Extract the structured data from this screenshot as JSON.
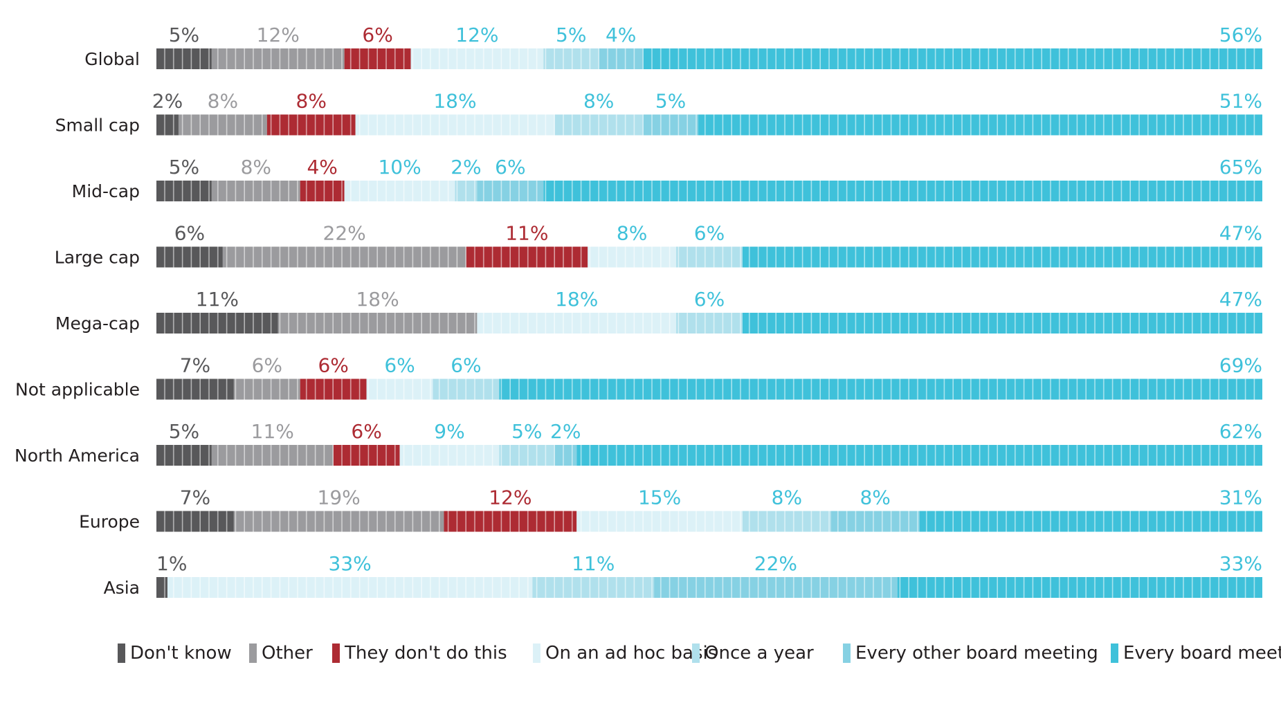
{
  "chart_data": {
    "type": "bar",
    "orientation": "horizontal",
    "stacked": true,
    "normalized": true,
    "unit": "%",
    "categories": [
      "Global",
      "Small cap",
      "Mid-cap",
      "Large cap",
      "Mega-cap",
      "Not applicable",
      "North America",
      "Europe",
      "Asia"
    ],
    "series": [
      {
        "name": "Don't know",
        "color": "#58585a",
        "label_color": "#58585a",
        "values": [
          5,
          2,
          5,
          6,
          11,
          7,
          5,
          7,
          1
        ]
      },
      {
        "name": "Other",
        "color": "#9b9b9e",
        "label_color": "#9b9b9e",
        "values": [
          12,
          8,
          8,
          22,
          18,
          6,
          11,
          19,
          0
        ]
      },
      {
        "name": "They don't do this",
        "color": "#ad2b33",
        "label_color": "#ad2b33",
        "values": [
          6,
          8,
          4,
          11,
          0,
          6,
          6,
          12,
          0
        ]
      },
      {
        "name": "On an ad hoc basis",
        "color": "#dcf1f7",
        "label_color": "#3fc1da",
        "values": [
          12,
          18,
          10,
          8,
          18,
          6,
          9,
          15,
          33
        ]
      },
      {
        "name": "Once a year",
        "color": "#b0e0ec",
        "label_color": "#3fc1da",
        "values": [
          5,
          8,
          2,
          6,
          6,
          6,
          5,
          8,
          11
        ]
      },
      {
        "name": "Every other board meeting",
        "color": "#86d1e3",
        "label_color": "#3fc1da",
        "values": [
          4,
          5,
          6,
          0,
          0,
          0,
          2,
          8,
          22
        ]
      },
      {
        "name": "Every board meeting",
        "color": "#3fc1da",
        "label_color": "#3fc1da",
        "values": [
          56,
          51,
          65,
          47,
          47,
          69,
          62,
          31,
          33
        ]
      }
    ],
    "legend_position": "bottom",
    "grid": false
  }
}
